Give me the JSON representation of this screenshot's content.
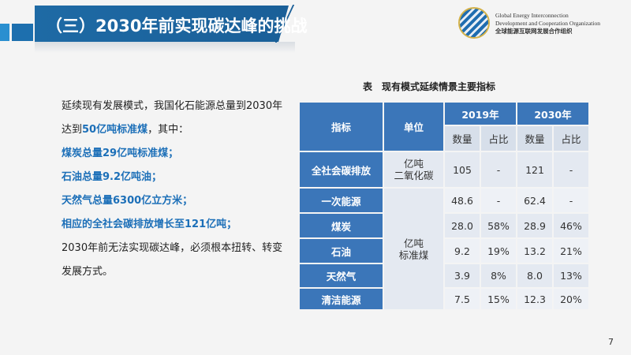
{
  "header": {
    "title": "（三）2030年前实现碳达峰的挑战",
    "org_en_1": "Global Energy Interconnection",
    "org_en_2": "Development and Cooperation Organization",
    "org_cn": "全球能源互联网发展合作组织"
  },
  "body": {
    "p1a": "延续现有发展模式，我国化石能源总量到2030年达到",
    "p1b": "50亿吨标准煤",
    "p1c": "，其中：",
    "items": [
      "煤炭总量29亿吨标准煤；",
      "石油总量9.2亿吨油；",
      "天然气总量6300亿立方米；",
      "相应的全社会碳排放增长至121亿吨；"
    ],
    "p2": "2030年前无法实现碳达峰，必须根本扭转、转变发展方式。"
  },
  "table": {
    "caption": "表　现有模式延续情景主要指标",
    "h_indicator": "指标",
    "h_unit": "单位",
    "h_2019": "2019年",
    "h_2030": "2030年",
    "h_qty": "数量",
    "h_share": "占比",
    "unit_co2": "亿吨\n二氧化碳",
    "unit_coal": "亿吨\n标准煤",
    "rows": [
      {
        "name": "全社会碳排放",
        "q19": "105",
        "s19": "-",
        "q30": "121",
        "s30": "-"
      },
      {
        "name": "一次能源",
        "q19": "48.6",
        "s19": "-",
        "q30": "62.4",
        "s30": "-"
      },
      {
        "name": "煤炭",
        "q19": "28.0",
        "s19": "58%",
        "q30": "28.9",
        "s30": "46%"
      },
      {
        "name": "石油",
        "q19": "9.2",
        "s19": "19%",
        "q30": "13.2",
        "s30": "21%"
      },
      {
        "name": "天然气",
        "q19": "3.9",
        "s19": "8%",
        "q30": "8.0",
        "s30": "13%"
      },
      {
        "name": "清洁能源",
        "q19": "7.5",
        "s19": "15%",
        "q30": "12.3",
        "s30": "20%"
      }
    ]
  },
  "page_number": "7",
  "colors": {
    "title_bar": "#1e6aa5",
    "table_header": "#3b76b9",
    "highlight": "#1c6fb8"
  }
}
